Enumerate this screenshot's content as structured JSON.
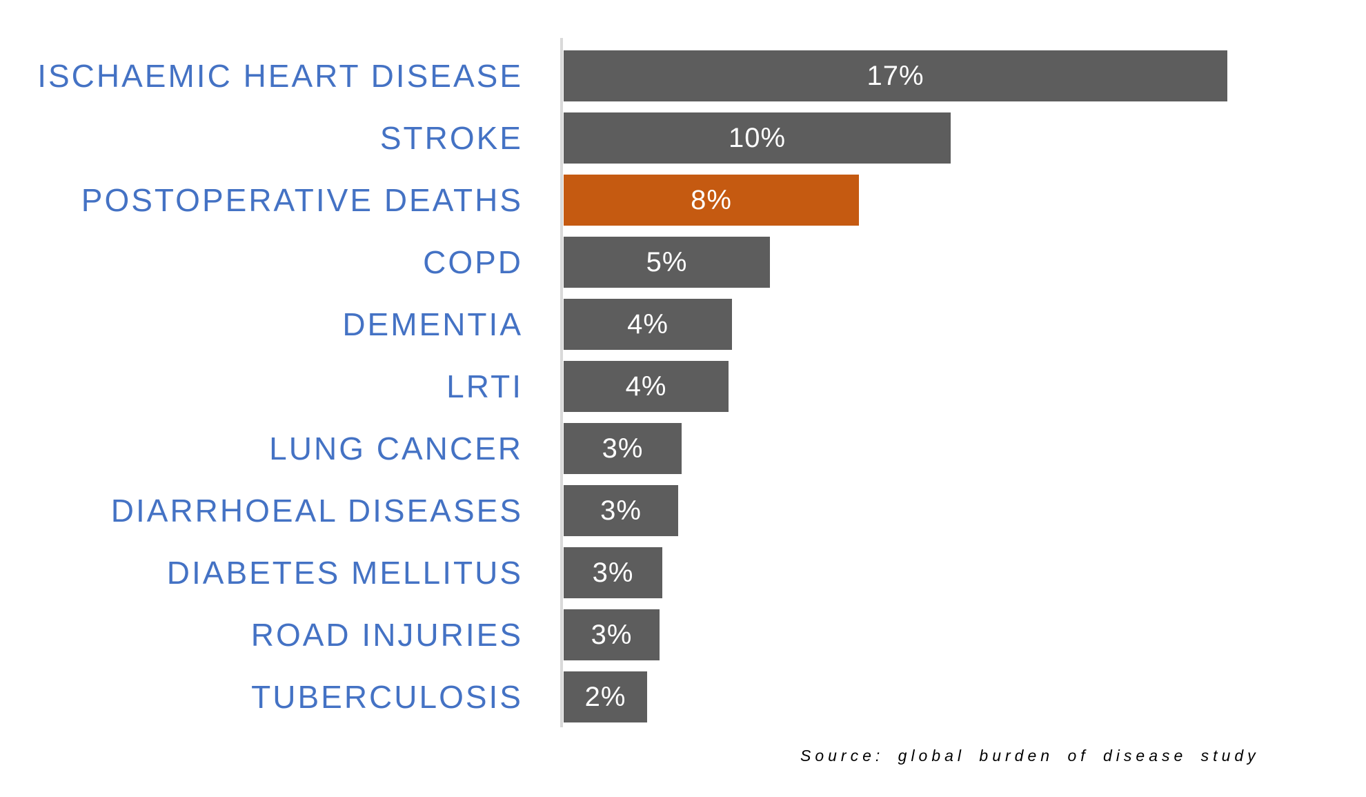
{
  "chart_data": {
    "type": "bar",
    "orientation": "horizontal",
    "title": "",
    "xlabel": "",
    "ylabel": "",
    "grid": false,
    "legend": "none",
    "xlim": [
      0,
      17.6
    ],
    "categories": [
      "ISCHAEMIC HEART DISEASE",
      "STROKE",
      "POSTOPERATIVE DEATHS",
      "COPD",
      "DEMENTIA",
      "LRTI",
      "LUNG CANCER",
      "DIARRHOEAL DISEASES",
      "DIABETES MELLITUS",
      "ROAD INJURIES",
      "TUBERCULOSIS"
    ],
    "values": [
      17,
      10,
      8,
      5,
      4,
      4,
      3,
      3,
      3,
      3,
      2
    ],
    "value_labels": [
      "17%",
      "10%",
      "8%",
      "5%",
      "4%",
      "4%",
      "3%",
      "3%",
      "3%",
      "3%",
      "2%"
    ],
    "bar_lengths_pct_est": [
      17.0,
      9.91,
      7.57,
      5.28,
      4.31,
      4.22,
      3.02,
      2.93,
      2.53,
      2.46,
      2.14
    ],
    "highlight_index": 2,
    "colors": {
      "bar": "#5D5D5D",
      "highlight": "#C55A11",
      "category_label": "#4472C4",
      "value_label": "#FFFFFF",
      "axis_line": "#D9D9D9"
    },
    "source_note": "Source: global burden of disease study"
  }
}
